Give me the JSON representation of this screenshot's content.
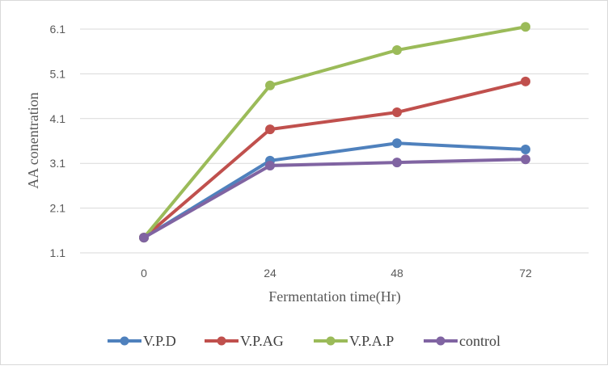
{
  "chart_data": {
    "type": "line",
    "title": "",
    "xlabel": "Fermentation time(Hr)",
    "ylabel": "AA conentration",
    "categories": [
      "0",
      "24",
      "48",
      "72"
    ],
    "ylim": [
      1.1,
      6.1
    ],
    "yticks": [
      "1.1",
      "2.1",
      "3.1",
      "4.1",
      "5.1",
      "6.1"
    ],
    "grid": true,
    "legend_position": "bottom",
    "series": [
      {
        "name": "V.P.D",
        "color": "#4f81bd",
        "values": [
          1.44,
          3.16,
          3.55,
          3.41
        ]
      },
      {
        "name": "V.P.AG",
        "color": "#c0504d",
        "values": [
          1.44,
          3.86,
          4.24,
          4.93
        ]
      },
      {
        "name": "V.P.A.P",
        "color": "#9bbb59",
        "values": [
          1.44,
          4.84,
          5.63,
          6.15
        ]
      },
      {
        "name": "control",
        "color": "#8064a2",
        "values": [
          1.44,
          3.05,
          3.12,
          3.19
        ]
      }
    ]
  }
}
